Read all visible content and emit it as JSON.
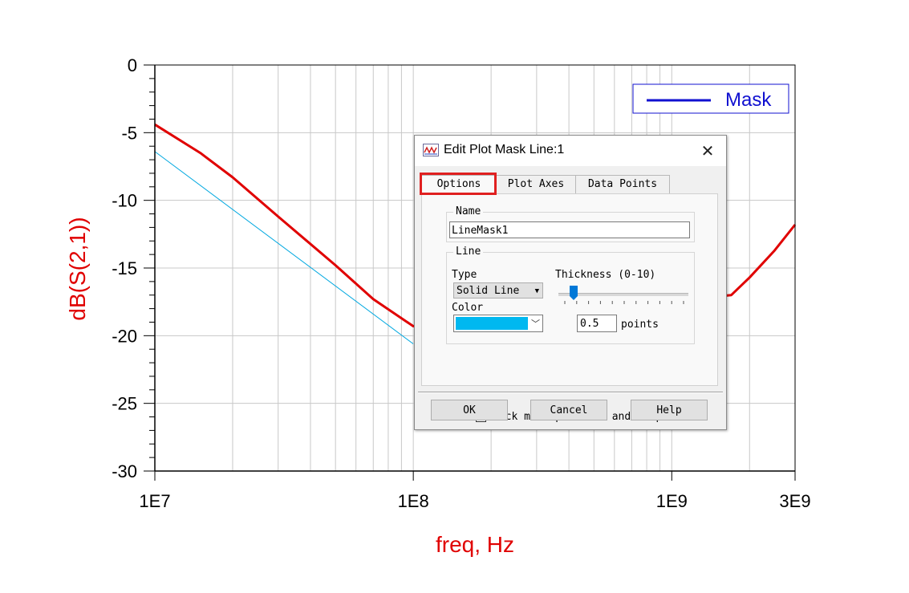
{
  "chart_data": {
    "type": "line",
    "xscale": "log",
    "xlim": [
      10000000,
      3000000000
    ],
    "ylim": [
      -30,
      0
    ],
    "grid": true,
    "xlabel": "freq, Hz",
    "ylabel": "dB(S(2,1))",
    "x_ticks": [
      {
        "value": 10000000,
        "label": "1E7"
      },
      {
        "value": 100000000,
        "label": "1E8"
      },
      {
        "value": 1000000000,
        "label": "1E9"
      },
      {
        "value": 3000000000,
        "label": "3E9"
      }
    ],
    "y_ticks": [
      0,
      -5,
      -10,
      -15,
      -20,
      -25,
      -30
    ],
    "legend": {
      "placement": "top-right",
      "entries": [
        "Mask"
      ]
    },
    "series": [
      {
        "color": "#e00000",
        "x": [
          10000000,
          15000000,
          20000000,
          30000000,
          50000000,
          70000000,
          100000000,
          1700000000,
          2000000000,
          2500000000,
          3000000000
        ],
        "y": [
          -4.4,
          -6.5,
          -8.3,
          -11.2,
          -14.8,
          -17.3,
          -19.3,
          -17.0,
          -15.7,
          -13.7,
          -11.8
        ]
      },
      {
        "name": "Mask",
        "color": "#00a8e0",
        "x": [
          10000000,
          100000000
        ],
        "y": [
          -6.4,
          -20.6
        ]
      }
    ]
  },
  "dialog": {
    "title": "Edit Plot Mask Line:1",
    "close_glyph": "✕",
    "tabs": [
      "Options",
      "Plot Axes",
      "Data Points"
    ],
    "active_tab": "Options",
    "name_group": {
      "label": "Name",
      "value": "LineMask1"
    },
    "line_group": {
      "label": "Line",
      "type_label": "Type",
      "type_value": "Solid Line",
      "color_label": "Color",
      "color_value": "#00b8f0",
      "thickness_label": "Thickness (0-10)",
      "thickness_value": "0.5",
      "thickness_unit": "points",
      "thickness_level": 0.05
    },
    "lock_label": "Lock mask position and shape",
    "lock_checked": false,
    "buttons": {
      "ok": "OK",
      "cancel": "Cancel",
      "help": "Help"
    }
  }
}
